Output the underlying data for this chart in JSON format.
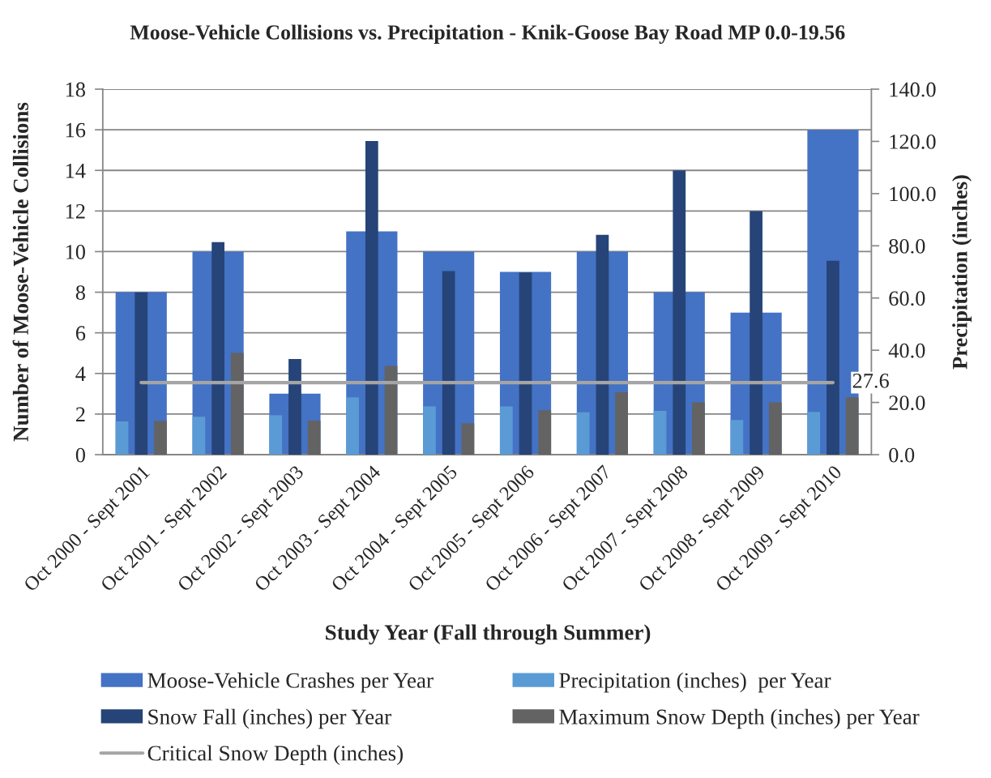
{
  "chart_data": {
    "type": "bar",
    "title": "Moose-Vehicle Collisions vs. Precipitation - Knik-Goose Bay Road MP 0.0-19.56",
    "xlabel": "Study Year (Fall through Summer)",
    "ylabel": "Number of Moose-Vehicle Collisions",
    "y2label": "Precipitation (inches)",
    "categories": [
      "Oct 2000 - Sept 2001",
      "Oct 2001 - Sept 2002",
      "Oct 2002 - Sept 2003",
      "Oct 2003 - Sept 2004",
      "Oct 2004 - Sept 2005",
      "Oct 2005 - Sept 2006",
      "Oct 2006 - Sept 2007",
      "Oct 2007 - Sept 2008",
      "Oct 2008 - Sept 2009",
      "Oct 2009 - Sept 2010"
    ],
    "ylim": [
      0,
      18
    ],
    "yticks": [
      0,
      2,
      4,
      6,
      8,
      10,
      12,
      14,
      16,
      18
    ],
    "y2lim": [
      0,
      140
    ],
    "y2ticks": [
      {
        "value": 0,
        "label": "0.0"
      },
      {
        "value": 20,
        "label": "20.0"
      },
      {
        "value": 40,
        "label": "40.0"
      },
      {
        "value": 60,
        "label": "60.0"
      },
      {
        "value": 80,
        "label": "80.0"
      },
      {
        "value": 100,
        "label": "100.0"
      },
      {
        "value": 120,
        "label": "120.0"
      },
      {
        "value": 140,
        "label": "140.0"
      }
    ],
    "grid": "y",
    "legend": "bottom",
    "series": [
      {
        "name": "Moose-Vehicle Crashes per Year",
        "color": "#4472c4",
        "values": [
          8,
          10,
          3,
          11,
          10,
          9,
          10,
          8,
          7,
          16
        ]
      },
      {
        "name": "Precipitation (inches)  per Year",
        "color": "#5b9bd5",
        "axis": "y2",
        "values": [
          12.7,
          14.5,
          15.1,
          22.0,
          18.5,
          18.5,
          16.2,
          16.8,
          13.3,
          16.4
        ]
      },
      {
        "name": "Snow Fall (inches) per Year",
        "color": "#264478",
        "axis": "y2",
        "values": [
          62.2,
          81.4,
          36.6,
          120.1,
          70.3,
          69.8,
          84.2,
          108.9,
          93.3,
          74.3
        ]
      },
      {
        "name": "Maximum Snow Depth (inches) per Year",
        "color": "#636363",
        "axis": "y2",
        "values": [
          13.0,
          39.0,
          13.0,
          34.0,
          12.0,
          17.0,
          23.9,
          20.0,
          20.0,
          22.0
        ]
      },
      {
        "name": "Critical Snow Depth (inches)",
        "type": "line",
        "color": "#a5a5a5",
        "axis": "y2",
        "marker": "none",
        "values": [
          27.6,
          27.6,
          27.6,
          27.6,
          27.6,
          27.6,
          27.6,
          27.6,
          27.6,
          27.6
        ],
        "value_labels": [
          null,
          null,
          null,
          null,
          null,
          null,
          null,
          null,
          null,
          "27.6"
        ]
      }
    ]
  }
}
